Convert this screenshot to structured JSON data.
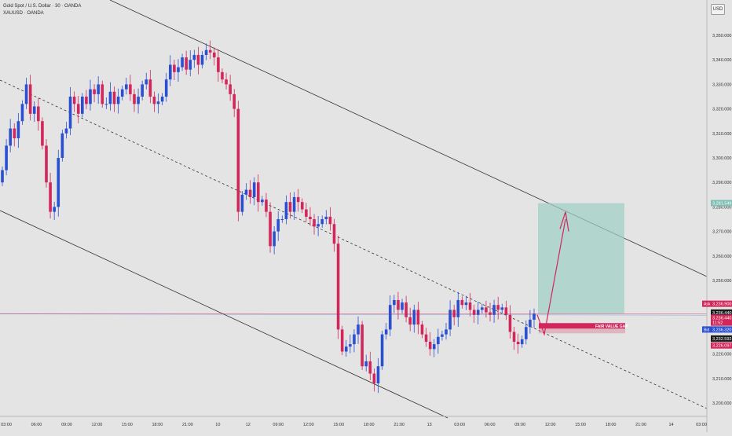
{
  "header": {
    "title": "Gold Spot / U.S. Dollar · 30 · OANDA",
    "symbol": "XAUUSD · OANDA"
  },
  "currency_button": "USD",
  "colors": {
    "background": "#e4e4e4",
    "up": "#2a4fd1",
    "down": "#d1275b",
    "channel": "#333333",
    "target_zone": "#9ccfc4",
    "fvg": "#d1275b",
    "ask": "#d1275b",
    "bid": "#2a4fd1"
  },
  "price_labels": {
    "target": "3,281.549",
    "ask_tag": "Ask",
    "ask": "3,236.900",
    "last": "3,236.440",
    "last2": "3,236.440",
    "countdown": "11:52",
    "bid_tag": "Bid",
    "bid": "3,236.320",
    "fvg_top": "3,232.592",
    "fvg_bottom": "3,226.097"
  },
  "annotations": {
    "fvg_label": "FAIR VALUE GAP"
  },
  "chart_data": {
    "type": "candlestick",
    "title": "Gold Spot / U.S. Dollar · 30 · OANDA",
    "ylim": [
      3195,
      3358
    ],
    "y_ticks": [
      {
        "value": 3350,
        "label": "3,350.000"
      },
      {
        "value": 3340,
        "label": "3,340.000"
      },
      {
        "value": 3330,
        "label": "3,330.000"
      },
      {
        "value": 3320,
        "label": "3,320.000"
      },
      {
        "value": 3310,
        "label": "3,310.000"
      },
      {
        "value": 3300,
        "label": "3,300.000"
      },
      {
        "value": 3290,
        "label": "3,290.000"
      },
      {
        "value": 3280,
        "label": "3,280.000"
      },
      {
        "value": 3270,
        "label": "3,270.000"
      },
      {
        "value": 3260,
        "label": "3,260.000"
      },
      {
        "value": 3250,
        "label": "3,250.000"
      },
      {
        "value": 3240,
        "label": "3,240.000"
      },
      {
        "value": 3230,
        "label": "3,230.000"
      },
      {
        "value": 3220,
        "label": "3,220.000"
      },
      {
        "value": 3210,
        "label": "3,210.000"
      },
      {
        "value": 3200,
        "label": "3,200.000"
      }
    ],
    "x_labels": [
      "03:00",
      "06:00",
      "09:00",
      "12:00",
      "15:00",
      "18:00",
      "21:00",
      "10",
      "12",
      "09:00",
      "12:00",
      "15:00",
      "18:00",
      "21:00",
      "13",
      "03:00",
      "06:00",
      "09:00",
      "12:00",
      "15:00",
      "18:00",
      "21:00",
      "14",
      "03:00"
    ],
    "closes": [
      3295,
      3305,
      3312,
      3308,
      3315,
      3322,
      3330,
      3318,
      3321,
      3315,
      3305,
      3290,
      3278,
      3280,
      3300,
      3310,
      3312,
      3325,
      3322,
      3318,
      3325,
      3322,
      3328,
      3326,
      3330,
      3322,
      3322,
      3327,
      3322,
      3325,
      3328,
      3330,
      3326,
      3322,
      3325,
      3330,
      3332,
      3325,
      3322,
      3323,
      3325,
      3332,
      3338,
      3335,
      3337,
      3341,
      3336,
      3340,
      3342,
      3338,
      3342,
      3344,
      3343,
      3341,
      3335,
      3332,
      3330,
      3326,
      3320,
      3278,
      3285,
      3287,
      3284,
      3290,
      3282,
      3283,
      3278,
      3264,
      3270,
      3275,
      3275,
      3282,
      3278,
      3284,
      3282,
      3279,
      3276,
      3275,
      3272,
      3273,
      3275,
      3276,
      3273,
      3265,
      3230,
      3221,
      3223,
      3224,
      3228,
      3232,
      3215,
      3217,
      3212,
      3208,
      3215,
      3228,
      3230,
      3240,
      3242,
      3238,
      3241,
      3235,
      3232,
      3238,
      3232,
      3228,
      3225,
      3222,
      3224,
      3227,
      3228,
      3230,
      3238,
      3235,
      3242,
      3240,
      3241,
      3238,
      3236,
      3238,
      3239,
      3237,
      3236,
      3240,
      3238,
      3239,
      3236,
      3229,
      3225,
      3224,
      3226,
      3231,
      3234,
      3236.44
    ],
    "annotations": [
      "Descending channel upper line",
      "Descending channel lower line",
      "Dashed channel midline",
      "FAIR VALUE GAP",
      "Long target zone to 3,281.549"
    ]
  }
}
